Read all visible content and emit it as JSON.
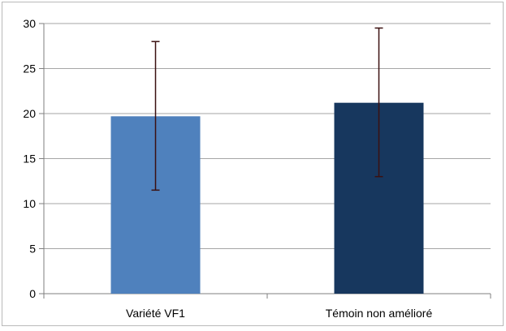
{
  "chart_data": {
    "type": "bar",
    "title": "",
    "xlabel": "",
    "ylabel": "",
    "categories": [
      "Variété VF1",
      "Témoin non amélioré"
    ],
    "values": [
      19.7,
      21.2
    ],
    "error_bars": [
      {
        "low": 11.5,
        "high": 28.0
      },
      {
        "low": 13.0,
        "high": 29.5
      }
    ],
    "bar_colors": [
      "#4f81bd",
      "#17375e"
    ],
    "ylim": [
      0,
      30
    ],
    "yticks": [
      0,
      5,
      10,
      15,
      20,
      25,
      30
    ],
    "grid": true,
    "legend": "none"
  }
}
